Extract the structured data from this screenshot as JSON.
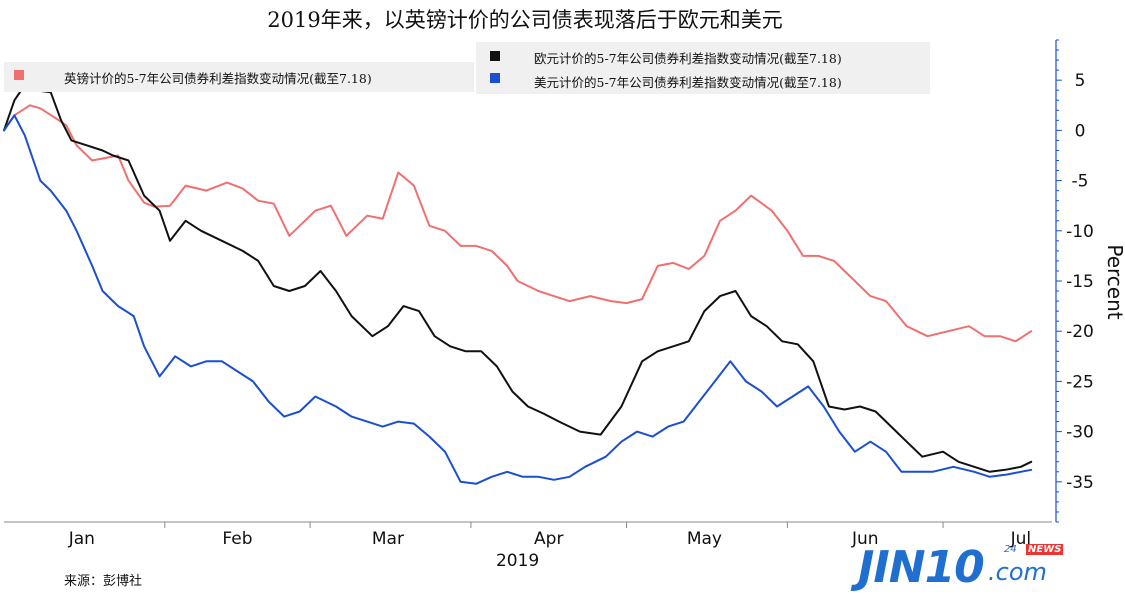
{
  "chart_data": {
    "type": "line",
    "title": "2019年来，以英镑计价的公司债表现落后于欧元和美元",
    "ylabel": "Percent",
    "xlabel_year": "2019",
    "ylim": [
      -39,
      9
    ],
    "yticks": [
      5,
      0,
      -5,
      -10,
      -15,
      -20,
      -25,
      -30,
      -35
    ],
    "xlim": [
      "2019-01-01",
      "2019-07-22"
    ],
    "month_labels": [
      {
        "label": "Jan",
        "date": "2019-01-16"
      },
      {
        "label": "Feb",
        "date": "2019-02-15"
      },
      {
        "label": "Mar",
        "date": "2019-03-16"
      },
      {
        "label": "Apr",
        "date": "2019-04-16"
      },
      {
        "label": "May",
        "date": "2019-05-16"
      },
      {
        "label": "Jun",
        "date": "2019-06-16"
      },
      {
        "label": "Jul",
        "date": "2019-07-16"
      }
    ],
    "month_boundaries": [
      "2019-02-01",
      "2019-03-01",
      "2019-04-01",
      "2019-05-01",
      "2019-06-01",
      "2019-07-01"
    ],
    "grid": false,
    "legend": [
      {
        "name": "英镑计价的5-7年公司债券利差指数变动情况(截至7.18)",
        "color": "#f07070",
        "placement": "top-left"
      },
      {
        "name": "欧元计价的5-7年公司债券利差指数变动情况(截至7.18)",
        "color": "#111111",
        "placement": "top-right"
      },
      {
        "name": "美元计价的5-7年公司债券利差指数变动情况(截至7.18)",
        "color": "#1a4fd0",
        "placement": "top-right"
      }
    ],
    "series": [
      {
        "name": "英镑计价的5-7年公司债券利差指数变动情况(截至7.18)",
        "color": "#f07070",
        "x": [
          "2019-01-01",
          "2019-01-03",
          "2019-01-06",
          "2019-01-08",
          "2019-01-11",
          "2019-01-13",
          "2019-01-15",
          "2019-01-18",
          "2019-01-20",
          "2019-01-23",
          "2019-01-25",
          "2019-01-28",
          "2019-01-30",
          "2019-02-02",
          "2019-02-05",
          "2019-02-09",
          "2019-02-13",
          "2019-02-16",
          "2019-02-19",
          "2019-02-22",
          "2019-02-25",
          "2019-02-28",
          "2019-03-02",
          "2019-03-05",
          "2019-03-08",
          "2019-03-12",
          "2019-03-15",
          "2019-03-18",
          "2019-03-21",
          "2019-03-24",
          "2019-03-27",
          "2019-03-30",
          "2019-04-02",
          "2019-04-05",
          "2019-04-08",
          "2019-04-10",
          "2019-04-14",
          "2019-04-17",
          "2019-04-20",
          "2019-04-24",
          "2019-04-28",
          "2019-05-01",
          "2019-05-04",
          "2019-05-07",
          "2019-05-10",
          "2019-05-13",
          "2019-05-16",
          "2019-05-19",
          "2019-05-22",
          "2019-05-25",
          "2019-05-29",
          "2019-06-01",
          "2019-06-04",
          "2019-06-07",
          "2019-06-10",
          "2019-06-13",
          "2019-06-17",
          "2019-06-20",
          "2019-06-24",
          "2019-06-28",
          "2019-07-02",
          "2019-07-06",
          "2019-07-09",
          "2019-07-12",
          "2019-07-15",
          "2019-07-18"
        ],
        "values": [
          0,
          1.5,
          2.5,
          2.2,
          1.2,
          0.5,
          -1.5,
          -3.0,
          -2.8,
          -2.5,
          -5.0,
          -7.2,
          -7.6,
          -7.5,
          -5.5,
          -6.0,
          -5.2,
          -5.8,
          -7.0,
          -7.3,
          -10.5,
          -9.0,
          -8.0,
          -7.5,
          -10.5,
          -8.5,
          -8.8,
          -4.2,
          -5.5,
          -9.5,
          -10.0,
          -11.5,
          -11.5,
          -12.0,
          -13.5,
          -15.0,
          -16.0,
          -16.5,
          -17.0,
          -16.5,
          -17.0,
          -17.2,
          -16.8,
          -13.5,
          -13.2,
          -13.8,
          -12.5,
          -9.0,
          -8.0,
          -6.5,
          -8.0,
          -10.0,
          -12.5,
          -12.5,
          -13.0,
          -14.5,
          -16.5,
          -17.0,
          -19.5,
          -20.5,
          -20.0,
          -19.5,
          -20.5,
          -20.5,
          -21.0,
          -20.0
        ]
      },
      {
        "name": "欧元计价的5-7年公司债券利差指数变动情况(截至7.18)",
        "color": "#111111",
        "x": [
          "2019-01-01",
          "2019-01-03",
          "2019-01-05",
          "2019-01-07",
          "2019-01-10",
          "2019-01-12",
          "2019-01-14",
          "2019-01-17",
          "2019-01-20",
          "2019-01-22",
          "2019-01-25",
          "2019-01-28",
          "2019-01-31",
          "2019-02-02",
          "2019-02-05",
          "2019-02-08",
          "2019-02-12",
          "2019-02-16",
          "2019-02-19",
          "2019-02-22",
          "2019-02-25",
          "2019-02-28",
          "2019-03-03",
          "2019-03-06",
          "2019-03-09",
          "2019-03-13",
          "2019-03-16",
          "2019-03-19",
          "2019-03-22",
          "2019-03-25",
          "2019-03-28",
          "2019-03-31",
          "2019-04-03",
          "2019-04-06",
          "2019-04-09",
          "2019-04-12",
          "2019-04-15",
          "2019-04-18",
          "2019-04-22",
          "2019-04-26",
          "2019-04-30",
          "2019-05-04",
          "2019-05-07",
          "2019-05-10",
          "2019-05-13",
          "2019-05-16",
          "2019-05-19",
          "2019-05-22",
          "2019-05-25",
          "2019-05-28",
          "2019-05-31",
          "2019-06-03",
          "2019-06-06",
          "2019-06-09",
          "2019-06-12",
          "2019-06-15",
          "2019-06-18",
          "2019-06-21",
          "2019-06-24",
          "2019-06-27",
          "2019-07-01",
          "2019-07-04",
          "2019-07-07",
          "2019-07-10",
          "2019-07-13",
          "2019-07-16",
          "2019-07-18"
        ],
        "values": [
          0,
          3.0,
          4.5,
          4.0,
          3.8,
          1.0,
          -1.0,
          -1.5,
          -2.0,
          -2.5,
          -3.0,
          -6.5,
          -8.0,
          -11.0,
          -9.0,
          -10.0,
          -11.0,
          -12.0,
          -13.0,
          -15.5,
          -16.0,
          -15.5,
          -14.0,
          -16.0,
          -18.5,
          -20.5,
          -19.5,
          -17.5,
          -18.0,
          -20.5,
          -21.5,
          -22.0,
          -22.0,
          -23.5,
          -26.0,
          -27.5,
          -28.2,
          -29.0,
          -30.0,
          -30.3,
          -27.5,
          -23.0,
          -22.0,
          -21.5,
          -21.0,
          -18.0,
          -16.5,
          -16.0,
          -18.5,
          -19.5,
          -21.0,
          -21.3,
          -23.0,
          -27.5,
          -27.8,
          -27.5,
          -28.0,
          -29.5,
          -31.0,
          -32.5,
          -32.0,
          -33.0,
          -33.5,
          -34.0,
          -33.8,
          -33.5,
          -33.0
        ]
      },
      {
        "name": "美元计价的5-7年公司债券利差指数变动情况(截至7.18)",
        "color": "#1a4fd0",
        "x": [
          "2019-01-01",
          "2019-01-03",
          "2019-01-05",
          "2019-01-08",
          "2019-01-10",
          "2019-01-13",
          "2019-01-15",
          "2019-01-18",
          "2019-01-20",
          "2019-01-23",
          "2019-01-26",
          "2019-01-28",
          "2019-01-31",
          "2019-02-03",
          "2019-02-06",
          "2019-02-09",
          "2019-02-12",
          "2019-02-15",
          "2019-02-18",
          "2019-02-21",
          "2019-02-24",
          "2019-02-27",
          "2019-03-02",
          "2019-03-06",
          "2019-03-09",
          "2019-03-12",
          "2019-03-15",
          "2019-03-18",
          "2019-03-21",
          "2019-03-24",
          "2019-03-27",
          "2019-03-30",
          "2019-04-02",
          "2019-04-05",
          "2019-04-08",
          "2019-04-11",
          "2019-04-14",
          "2019-04-17",
          "2019-04-20",
          "2019-04-23",
          "2019-04-27",
          "2019-04-30",
          "2019-05-03",
          "2019-05-06",
          "2019-05-09",
          "2019-05-12",
          "2019-05-15",
          "2019-05-18",
          "2019-05-21",
          "2019-05-24",
          "2019-05-27",
          "2019-05-30",
          "2019-06-02",
          "2019-06-05",
          "2019-06-08",
          "2019-06-11",
          "2019-06-14",
          "2019-06-17",
          "2019-06-20",
          "2019-06-23",
          "2019-06-26",
          "2019-06-29",
          "2019-07-03",
          "2019-07-07",
          "2019-07-10",
          "2019-07-13",
          "2019-07-16",
          "2019-07-18"
        ],
        "values": [
          0,
          1.5,
          -0.5,
          -5.0,
          -6.0,
          -8.0,
          -10.0,
          -13.5,
          -16.0,
          -17.5,
          -18.5,
          -21.5,
          -24.5,
          -22.5,
          -23.5,
          -23.0,
          -23.0,
          -24.0,
          -25.0,
          -27.0,
          -28.5,
          -28.0,
          -26.5,
          -27.5,
          -28.5,
          -29.0,
          -29.5,
          -29.0,
          -29.2,
          -30.5,
          -32.0,
          -35.0,
          -35.2,
          -34.5,
          -34.0,
          -34.5,
          -34.5,
          -34.8,
          -34.5,
          -33.5,
          -32.5,
          -31.0,
          -30.0,
          -30.5,
          -29.5,
          -29.0,
          -27.0,
          -25.0,
          -23.0,
          -25.0,
          -26.0,
          -27.5,
          -26.5,
          -25.5,
          -27.5,
          -30.0,
          -32.0,
          -31.0,
          -32.0,
          -34.0,
          -34.0,
          -34.0,
          -33.5,
          -34.0,
          -34.5,
          -34.3,
          -34.0,
          -33.8
        ]
      }
    ]
  },
  "source_note": "来源：彭博社",
  "watermark": {
    "main": "JIN10",
    "tail": ".com",
    "badge_247": "24",
    "badge_news": "NEWS"
  }
}
